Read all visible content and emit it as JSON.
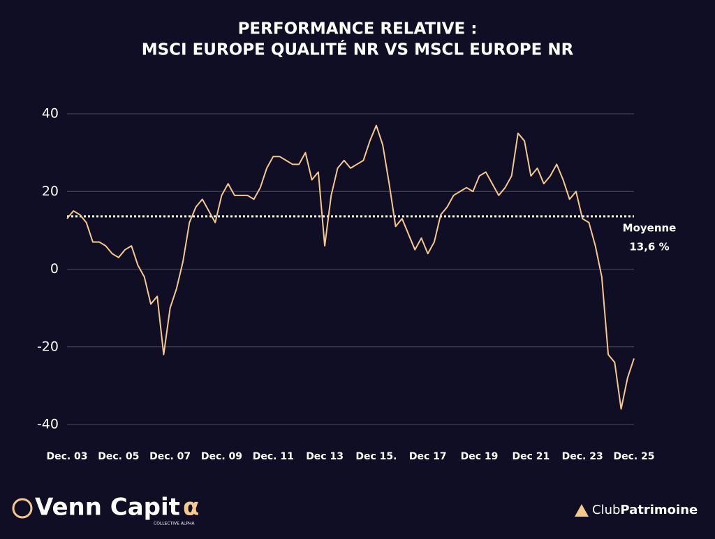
{
  "chart_data": {
    "type": "line",
    "title": [
      "PERFORMANCE RELATIVE :",
      "MSCI EUROPE QUALITÉ NR VS MSCL EUROPE NR"
    ],
    "x": [
      2004,
      2004.25,
      2004.5,
      2004.75,
      2005,
      2005.25,
      2005.5,
      2005.75,
      2006,
      2006.25,
      2006.5,
      2006.75,
      2007,
      2007.25,
      2007.5,
      2007.75,
      2008,
      2008.25,
      2008.5,
      2008.75,
      2009,
      2009.25,
      2009.5,
      2009.75,
      2010,
      2010.25,
      2010.5,
      2010.75,
      2011,
      2011.25,
      2011.5,
      2011.75,
      2012,
      2012.25,
      2012.5,
      2012.75,
      2013,
      2013.25,
      2013.5,
      2013.75,
      2014,
      2014.25,
      2014.5,
      2014.75,
      2015,
      2015.25,
      2015.5,
      2015.75,
      2016,
      2016.25,
      2016.5,
      2016.75,
      2017,
      2017.25,
      2017.5,
      2017.75,
      2018,
      2018.25,
      2018.5,
      2018.75,
      2019,
      2019.25,
      2019.5,
      2019.75,
      2020,
      2020.25,
      2020.5,
      2020.75,
      2021,
      2021.25,
      2021.5,
      2021.75,
      2022,
      2022.25,
      2022.5,
      2022.75,
      2023,
      2023.25,
      2023.5,
      2023.75,
      2024,
      2024.25,
      2024.5,
      2024.75,
      2025,
      2025.25,
      2025.5,
      2025.75,
      2026
    ],
    "series": [
      {
        "color": "#f5c98a",
        "values": [
          13,
          15,
          14,
          12,
          7,
          7,
          6,
          4,
          3,
          5,
          6,
          1,
          -2,
          -9,
          -7,
          -22,
          -10,
          -5,
          2,
          12,
          16,
          18,
          15,
          12,
          19,
          22,
          19,
          19,
          19,
          18,
          21,
          26,
          29,
          29,
          28,
          27,
          27,
          30,
          23,
          25,
          6,
          19,
          26,
          28,
          26,
          27,
          28,
          33,
          37,
          32,
          22,
          11,
          13,
          9,
          5,
          8,
          4,
          7,
          14,
          16,
          19,
          20,
          21,
          20,
          24,
          25,
          22,
          19,
          21,
          24,
          35,
          33,
          24,
          26,
          22,
          24,
          27,
          23,
          18,
          20,
          13,
          12,
          6,
          -2,
          -22,
          -24,
          -36,
          -28,
          -23
        ]
      }
    ],
    "xlim": [
      2004,
      2026
    ],
    "xticks": [
      {
        "value": 2004,
        "label": "Dec. 03"
      },
      {
        "value": 2006,
        "label": "Dec. 05"
      },
      {
        "value": 2008,
        "label": "Dec. 07"
      },
      {
        "value": 2010,
        "label": "Dec. 09"
      },
      {
        "value": 2012,
        "label": "Dec. 11"
      },
      {
        "value": 2014,
        "label": "Dec 13"
      },
      {
        "value": 2016,
        "label": "Dec 15."
      },
      {
        "value": 2018,
        "label": "Dec 17"
      },
      {
        "value": 2020,
        "label": "Dec 19"
      },
      {
        "value": 2022,
        "label": "Dec 21"
      },
      {
        "value": 2024,
        "label": "Dec. 23"
      },
      {
        "value": 2026,
        "label": "Dec. 25"
      }
    ],
    "ylim": [
      -40,
      40
    ],
    "yticks": [
      40,
      20,
      0,
      -20,
      -40
    ],
    "grid": true,
    "mean": 13.6,
    "mean_label": [
      "Moyenne",
      "13,6 %"
    ]
  },
  "logos": {
    "left": "Venn Capit",
    "left_alpha": "α",
    "left_tagline": "COLLECTIVE ALPHA",
    "right_a": "Club",
    "right_b": "Patrimoine"
  }
}
